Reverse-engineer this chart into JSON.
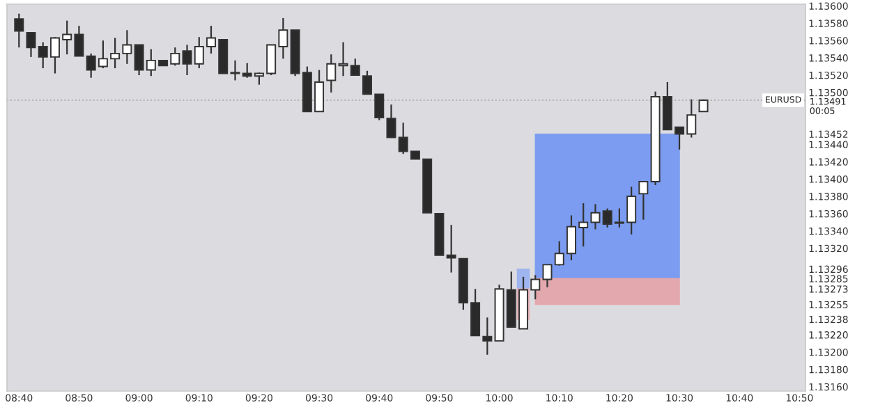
{
  "chart_data": {
    "type": "candlestick",
    "x": [
      8.6667,
      8.7,
      8.7333,
      8.7667,
      8.8,
      8.8333,
      8.8667,
      8.9,
      8.9333,
      8.9667,
      9.0,
      9.0333,
      9.0667,
      9.1,
      9.1333,
      9.1667,
      9.2,
      9.2333,
      9.2667,
      9.3,
      9.3333,
      9.3667,
      9.4,
      9.4333,
      9.4667,
      9.5,
      9.5333,
      9.5667,
      9.6,
      9.6333,
      9.6667,
      9.7,
      9.7333,
      9.7667,
      9.8,
      9.8333,
      9.8667,
      9.9,
      9.9333,
      9.9667,
      10.0,
      10.0333,
      10.0667,
      10.1,
      10.1333,
      10.1667,
      10.2,
      10.2333,
      10.2667,
      10.3,
      10.3333,
      10.3667,
      10.4,
      10.4333,
      10.4667,
      10.5,
      10.5333,
      10.5667
    ],
    "ohlc": [
      [
        1.13585,
        1.13591,
        1.13552,
        1.13571
      ],
      [
        1.13569,
        1.13569,
        1.13541,
        1.13552
      ],
      [
        1.13553,
        1.13558,
        1.13528,
        1.13541
      ],
      [
        1.13541,
        1.13564,
        1.13522,
        1.13563
      ],
      [
        1.13561,
        1.13583,
        1.13544,
        1.13567
      ],
      [
        1.13567,
        1.13577,
        1.13542,
        1.13542
      ],
      [
        1.13542,
        1.13545,
        1.13517,
        1.13526
      ],
      [
        1.1353,
        1.1356,
        1.13528,
        1.13539
      ],
      [
        1.13539,
        1.13563,
        1.13528,
        1.13545
      ],
      [
        1.13545,
        1.13572,
        1.13533,
        1.13555
      ],
      [
        1.13555,
        1.13555,
        1.1352,
        1.13526
      ],
      [
        1.13526,
        1.1355,
        1.13519,
        1.13537
      ],
      [
        1.13537,
        1.13537,
        1.13531,
        1.13531
      ],
      [
        1.13533,
        1.13552,
        1.13531,
        1.13545
      ],
      [
        1.13548,
        1.13555,
        1.1352,
        1.13533
      ],
      [
        1.13533,
        1.13564,
        1.13528,
        1.13553
      ],
      [
        1.13553,
        1.13577,
        1.13545,
        1.13563
      ],
      [
        1.13561,
        1.13561,
        1.13522,
        1.13522
      ],
      [
        1.13523,
        1.13537,
        1.13514,
        1.13522
      ],
      [
        1.13522,
        1.13534,
        1.13517,
        1.13519
      ],
      [
        1.13519,
        1.13523,
        1.13509,
        1.13522
      ],
      [
        1.13522,
        1.13555,
        1.1352,
        1.13555
      ],
      [
        1.13553,
        1.13586,
        1.13539,
        1.13572
      ],
      [
        1.13572,
        1.13572,
        1.13519,
        1.13522
      ],
      [
        1.13523,
        1.1353,
        1.13478,
        1.13478
      ],
      [
        1.13478,
        1.13526,
        1.13478,
        1.13512
      ],
      [
        1.13514,
        1.13544,
        1.135,
        1.13533
      ],
      [
        1.13531,
        1.13558,
        1.13519,
        1.13533
      ],
      [
        1.13531,
        1.13539,
        1.1352,
        1.1352
      ],
      [
        1.13519,
        1.13525,
        1.13498,
        1.13498
      ],
      [
        1.13498,
        1.13498,
        1.13468,
        1.13471
      ],
      [
        1.1347,
        1.13486,
        1.13448,
        1.13448
      ],
      [
        1.13448,
        1.13465,
        1.13429,
        1.13432
      ],
      [
        1.13432,
        1.13432,
        1.13423,
        1.13423
      ],
      [
        1.13423,
        1.13423,
        1.13361,
        1.13361
      ],
      [
        1.1336,
        1.1336,
        1.13312,
        1.13312
      ],
      [
        1.13312,
        1.13347,
        1.13292,
        1.13309
      ],
      [
        1.13308,
        1.13308,
        1.13249,
        1.13257
      ],
      [
        1.13257,
        1.13273,
        1.13219,
        1.13219
      ],
      [
        1.13218,
        1.1324,
        1.13197,
        1.13213
      ],
      [
        1.13213,
        1.13278,
        1.13213,
        1.13273
      ],
      [
        1.13272,
        1.13293,
        1.13229,
        1.13229
      ],
      [
        1.13227,
        1.13287,
        1.13227,
        1.13272
      ],
      [
        1.13272,
        1.13289,
        1.13261,
        1.13284
      ],
      [
        1.13284,
        1.13301,
        1.13275,
        1.13301
      ],
      [
        1.13301,
        1.13328,
        1.133,
        1.13314
      ],
      [
        1.13314,
        1.13358,
        1.13306,
        1.13345
      ],
      [
        1.13344,
        1.13372,
        1.13322,
        1.1335
      ],
      [
        1.1335,
        1.13371,
        1.13342,
        1.13361
      ],
      [
        1.13363,
        1.13366,
        1.13344,
        1.13348
      ],
      [
        1.1335,
        1.13366,
        1.13344,
        1.13349
      ],
      [
        1.1335,
        1.13391,
        1.13336,
        1.1338
      ],
      [
        1.13383,
        1.13397,
        1.13353,
        1.13397
      ],
      [
        1.13397,
        1.13501,
        1.13393,
        1.13495
      ],
      [
        1.13495,
        1.13512,
        1.13457,
        1.13457
      ],
      [
        1.1346,
        1.1346,
        1.13434,
        1.13452
      ],
      [
        1.13452,
        1.13492,
        1.13448,
        1.13474
      ],
      [
        1.13478,
        1.13492,
        1.13478,
        1.13491
      ]
    ],
    "series": [
      {
        "type": "area",
        "x": [
          10.1,
          10.5
        ],
        "values": [
          null,
          null
        ],
        "upper": [
          1.13452,
          1.13452
        ],
        "lower": [
          1.13285,
          1.13285
        ],
        "color": "#7b9cf0"
      },
      {
        "type": "area",
        "x": [
          10.1,
          10.5
        ],
        "values": [
          null,
          null
        ],
        "upper": [
          1.13285,
          1.13285
        ],
        "lower": [
          1.13255,
          1.13255
        ],
        "color": "#e3a8ae"
      },
      {
        "type": "area",
        "x": [
          10.05,
          10.0833
        ],
        "values": [
          null,
          null
        ],
        "upper": [
          1.13296,
          1.13296
        ],
        "lower": [
          1.13273,
          1.13273
        ],
        "color": "#9fb5ef"
      },
      {
        "type": "area",
        "x": [
          10.05,
          10.0833
        ],
        "values": [
          null,
          null
        ],
        "upper": [
          1.13273,
          1.13273
        ],
        "lower": [
          1.13238,
          1.13238
        ],
        "color": "#e6b3b8"
      }
    ],
    "xlim": [
      8.6333,
      10.85
    ],
    "xticks": [
      {
        "value": 8.6667,
        "label": "08:40"
      },
      {
        "value": 8.8333,
        "label": "08:50"
      },
      {
        "value": 9.0,
        "label": "09:00"
      },
      {
        "value": 9.1667,
        "label": "09:10"
      },
      {
        "value": 9.3333,
        "label": "09:20"
      },
      {
        "value": 9.5,
        "label": "09:30"
      },
      {
        "value": 9.6667,
        "label": "09:40"
      },
      {
        "value": 9.8333,
        "label": "09:50"
      },
      {
        "value": 10.0,
        "label": "10:00"
      },
      {
        "value": 10.1667,
        "label": "10:10"
      },
      {
        "value": 10.3333,
        "label": "10:20"
      },
      {
        "value": 10.5,
        "label": "10:30"
      },
      {
        "value": 10.6667,
        "label": "10:40"
      },
      {
        "value": 10.8333,
        "label": "10:50"
      }
    ],
    "ylim": [
      1.13155,
      1.13602
    ],
    "yticks": [
      {
        "value": 1.1316,
        "label": "1.13160"
      },
      {
        "value": 1.1318,
        "label": "1.13180"
      },
      {
        "value": 1.132,
        "label": "1.13200"
      },
      {
        "value": 1.1322,
        "label": "1.13220"
      },
      {
        "value": 1.13238,
        "label": "1.13238"
      },
      {
        "value": 1.13255,
        "label": "1.13255"
      },
      {
        "value": 1.13273,
        "label": "1.13273"
      },
      {
        "value": 1.13285,
        "label": "1.13285"
      },
      {
        "value": 1.13296,
        "label": "1.13296"
      },
      {
        "value": 1.1332,
        "label": "1.13320"
      },
      {
        "value": 1.1334,
        "label": "1.13340"
      },
      {
        "value": 1.1336,
        "label": "1.13360"
      },
      {
        "value": 1.1338,
        "label": "1.13380"
      },
      {
        "value": 1.134,
        "label": "1.13400"
      },
      {
        "value": 1.1342,
        "label": "1.13420"
      },
      {
        "value": 1.1344,
        "label": "1.13440"
      },
      {
        "value": 1.13452,
        "label": "1.13452"
      },
      {
        "value": 1.135,
        "label": "1.13500"
      },
      {
        "value": 1.1352,
        "label": "1.13520"
      },
      {
        "value": 1.1354,
        "label": "1.13540"
      },
      {
        "value": 1.1356,
        "label": "1.13560"
      },
      {
        "value": 1.1358,
        "label": "1.13580"
      },
      {
        "value": 1.136,
        "label": "1.13600"
      }
    ],
    "ref_lines": [
      {
        "axis": "y",
        "value": 1.13491,
        "label": "1.13491\n00:05",
        "color": "#b0b0b0",
        "line_style": "dotted"
      }
    ],
    "annotations": [
      "EURUSD"
    ],
    "grid": false,
    "legend": false
  }
}
